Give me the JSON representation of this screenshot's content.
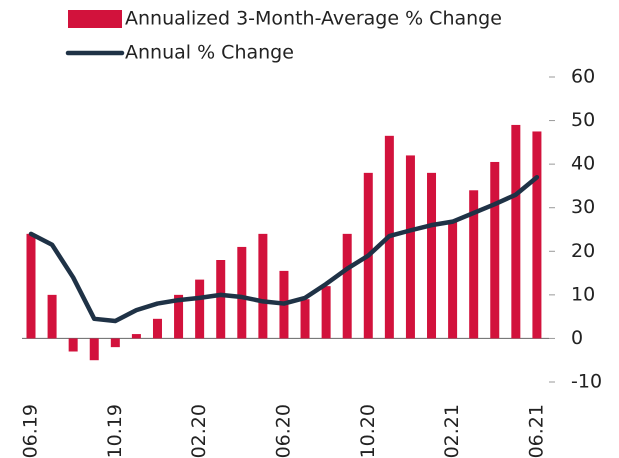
{
  "chart_data": {
    "type": "bar_line",
    "categories": [
      "06.19",
      null,
      null,
      null,
      "10.19",
      null,
      null,
      null,
      "02.20",
      null,
      null,
      null,
      "06.20",
      null,
      null,
      null,
      "10.20",
      null,
      null,
      null,
      "02.21",
      null,
      null,
      null,
      "06.21"
    ],
    "series": [
      {
        "name": "Annualized 3-Month-Average % Change",
        "type": "bar",
        "color": "#d2123c",
        "values": [
          24,
          10,
          -3,
          -5,
          -2,
          1,
          4.5,
          10,
          13.5,
          18,
          21,
          24,
          15.5,
          9,
          12,
          24,
          38,
          46.5,
          42,
          38,
          27,
          34,
          40.5,
          49,
          47.5
        ]
      },
      {
        "name": "Annual % Change",
        "type": "line",
        "color": "#1f3246",
        "values": [
          24,
          21.5,
          14,
          4.5,
          4,
          6.5,
          8,
          8.8,
          9.3,
          10,
          9.5,
          8.5,
          8,
          9.3,
          12.5,
          16,
          19,
          23.5,
          24.8,
          26,
          26.8,
          28.8,
          30.8,
          33,
          37
        ]
      }
    ],
    "ylim": [
      -10,
      60
    ],
    "yticks": [
      -10,
      0,
      10,
      20,
      30,
      40,
      50,
      60
    ],
    "legend": "top"
  }
}
